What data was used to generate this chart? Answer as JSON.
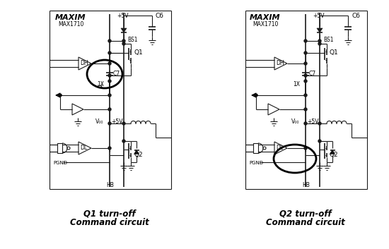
{
  "bg_color": "#ffffff",
  "fig_width": 5.5,
  "fig_height": 3.53,
  "dpi": 100,
  "left_label_line1": "Q1 turn-off",
  "left_label_line2": "Command circuit",
  "right_label_line1": "Q2 turn-off",
  "right_label_line2": "Command circuit",
  "label_fontsize": 8.5,
  "maxim_text": "MAXIM",
  "max1710_text": "MAX1710",
  "lc": "#1a1a1a"
}
